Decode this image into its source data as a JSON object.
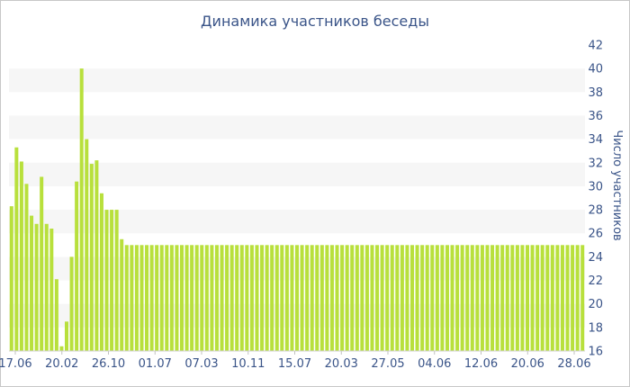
{
  "chart_data": {
    "type": "bar",
    "title": "Динамика участников беседы",
    "ylabel": "Число участников",
    "xlabel": "",
    "ylim": [
      16,
      42
    ],
    "y_ticks": [
      16,
      18,
      20,
      22,
      24,
      26,
      28,
      30,
      32,
      34,
      36,
      38,
      40,
      42
    ],
    "x_tick_labels": [
      "17.06",
      "20.02",
      "26.10",
      "01.07",
      "07.03",
      "10.11",
      "15.07",
      "20.03",
      "27.05",
      "04.06",
      "12.06",
      "20.06",
      "28.06"
    ],
    "grid": "alternating horizontal bands",
    "bar_color": "#b8e03c",
    "values": [
      28.3,
      33.3,
      32.1,
      30.2,
      27.5,
      26.8,
      30.8,
      26.8,
      26.4,
      22.1,
      16.4,
      18.5,
      24.0,
      30.4,
      40.0,
      34.0,
      31.9,
      32.2,
      29.4,
      28.0,
      28.0,
      28.0,
      25.5,
      25.0,
      25.0,
      25.0,
      25.0,
      25.0,
      25.0,
      25.0,
      25.0,
      25.0,
      25.0,
      25.0,
      25.0,
      25.0,
      25.0,
      25.0,
      25.0,
      25.0,
      25.0,
      25.0,
      25.0,
      25.0,
      25.0,
      25.0,
      25.0,
      25.0,
      25.0,
      25.0,
      25.0,
      25.0,
      25.0,
      25.0,
      25.0,
      25.0,
      25.0,
      25.0,
      25.0,
      25.0,
      25.0,
      25.0,
      25.0,
      25.0,
      25.0,
      25.0,
      25.0,
      25.0,
      25.0,
      25.0,
      25.0,
      25.0,
      25.0,
      25.0,
      25.0,
      25.0,
      25.0,
      25.0,
      25.0,
      25.0,
      25.0,
      25.0,
      25.0,
      25.0,
      25.0,
      25.0,
      25.0,
      25.0,
      25.0,
      25.0,
      25.0,
      25.0,
      25.0,
      25.0,
      25.0,
      25.0,
      25.0,
      25.0,
      25.0,
      25.0,
      25.0,
      25.0,
      25.0,
      25.0,
      25.0,
      25.0,
      25.0,
      25.0,
      25.0,
      25.0,
      25.0,
      25.0,
      25.0,
      25.0,
      25.0
    ]
  }
}
